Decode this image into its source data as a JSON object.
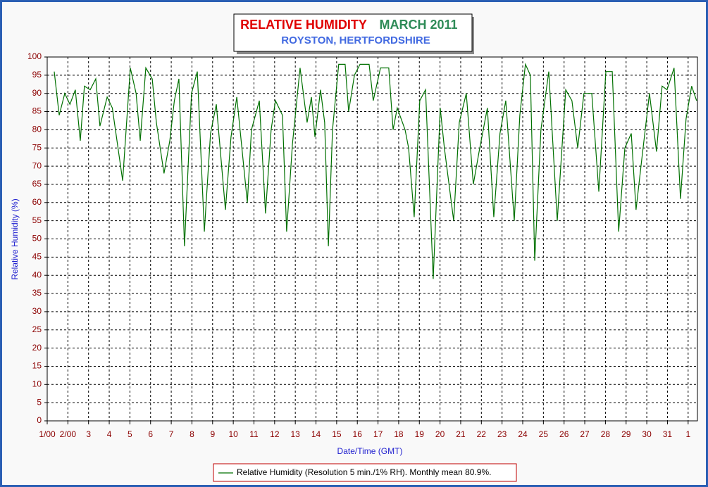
{
  "chart_data": {
    "type": "line",
    "title": "RELATIVE HUMIDITY",
    "title_date": "MARCH 2011",
    "subtitle": "ROYSTON, HERTFORDSHIRE",
    "y_label": "Relative Humidity (%)",
    "x_label": "Date/Time (GMT)",
    "xlim": [
      0,
      31.45
    ],
    "ylim": [
      0,
      100
    ],
    "yticks": [
      0,
      5,
      10,
      15,
      20,
      25,
      30,
      35,
      40,
      45,
      50,
      55,
      60,
      65,
      70,
      75,
      80,
      85,
      90,
      95,
      100
    ],
    "xticks": [
      {
        "value": 0,
        "label": "1/00"
      },
      {
        "value": 1,
        "label": "2/00"
      },
      {
        "value": 2,
        "label": "3"
      },
      {
        "value": 3,
        "label": "4"
      },
      {
        "value": 4,
        "label": "5"
      },
      {
        "value": 5,
        "label": "6"
      },
      {
        "value": 6,
        "label": "7"
      },
      {
        "value": 7,
        "label": "8"
      },
      {
        "value": 8,
        "label": "9"
      },
      {
        "value": 9,
        "label": "10"
      },
      {
        "value": 10,
        "label": "11"
      },
      {
        "value": 11,
        "label": "12"
      },
      {
        "value": 12,
        "label": "13"
      },
      {
        "value": 13,
        "label": "14"
      },
      {
        "value": 14,
        "label": "15"
      },
      {
        "value": 15,
        "label": "16"
      },
      {
        "value": 16,
        "label": "17"
      },
      {
        "value": 17,
        "label": "18"
      },
      {
        "value": 18,
        "label": "19"
      },
      {
        "value": 19,
        "label": "20"
      },
      {
        "value": 20,
        "label": "21"
      },
      {
        "value": 21,
        "label": "22"
      },
      {
        "value": 22,
        "label": "23"
      },
      {
        "value": 23,
        "label": "24"
      },
      {
        "value": 24,
        "label": "25"
      },
      {
        "value": 25,
        "label": "26"
      },
      {
        "value": 26,
        "label": "27"
      },
      {
        "value": 27,
        "label": "28"
      },
      {
        "value": 28,
        "label": "29"
      },
      {
        "value": 29,
        "label": "30"
      },
      {
        "value": 30,
        "label": "31"
      },
      {
        "value": 31,
        "label": "1"
      }
    ],
    "grid": true,
    "x": [
      0.34,
      0.58,
      0.85,
      1.1,
      1.36,
      1.6,
      1.8,
      2.08,
      2.35,
      2.55,
      2.9,
      3.15,
      3.65,
      4.02,
      4.3,
      4.5,
      4.77,
      5.08,
      5.28,
      5.65,
      5.93,
      6.15,
      6.37,
      6.64,
      6.98,
      7.26,
      7.6,
      7.9,
      8.18,
      8.62,
      8.89,
      9.17,
      9.68,
      9.88,
      10.26,
      10.56,
      10.83,
      11.04,
      11.38,
      11.58,
      11.86,
      12.23,
      12.57,
      12.78,
      12.95,
      13.22,
      13.42,
      13.6,
      13.8,
      14.1,
      14.41,
      14.58,
      14.86,
      15.13,
      15.57,
      15.77,
      16.12,
      16.52,
      16.73,
      16.93,
      17.31,
      17.48,
      17.75,
      18.02,
      18.3,
      18.67,
      19.01,
      19.21,
      19.66,
      19.93,
      20.27,
      20.61,
      20.89,
      21.29,
      21.6,
      21.9,
      22.18,
      22.59,
      22.86,
      23.13,
      23.37,
      23.58,
      23.88,
      24.26,
      24.67,
      25.08,
      25.38,
      25.66,
      25.96,
      26.34,
      26.68,
      27.02,
      27.33,
      27.64,
      27.94,
      28.25,
      28.48,
      28.76,
      29.13,
      29.47,
      29.74,
      29.98,
      30.32,
      30.63,
      30.9,
      31.17,
      31.41
    ],
    "series": [
      {
        "name": "Relative Humidity (Resolution 5 min./1% RH). Monthly mean 80.9%.",
        "color": "#007000",
        "values": [
          96,
          84,
          90,
          87,
          91,
          77,
          92,
          91,
          94,
          81,
          89,
          86,
          66,
          97,
          90,
          77,
          97,
          94,
          82,
          68,
          77,
          88,
          94,
          48,
          90,
          96,
          52,
          79,
          87,
          58,
          78,
          89,
          60,
          80,
          88,
          57,
          80,
          88,
          84,
          52,
          76,
          97,
          82,
          89,
          78,
          91,
          82,
          48,
          80,
          98,
          98,
          85,
          95,
          98,
          98,
          88,
          97,
          97,
          80,
          86,
          80,
          75,
          56,
          88,
          91,
          39,
          86,
          75,
          55,
          82,
          90,
          65,
          74,
          86,
          56,
          79,
          88,
          55,
          84,
          98,
          95,
          44,
          80,
          96,
          55,
          91,
          88,
          75,
          90,
          90,
          63,
          96,
          96,
          52,
          75,
          79,
          58,
          72,
          90,
          74,
          92,
          91,
          97,
          61,
          83,
          92,
          88
        ]
      }
    ]
  }
}
